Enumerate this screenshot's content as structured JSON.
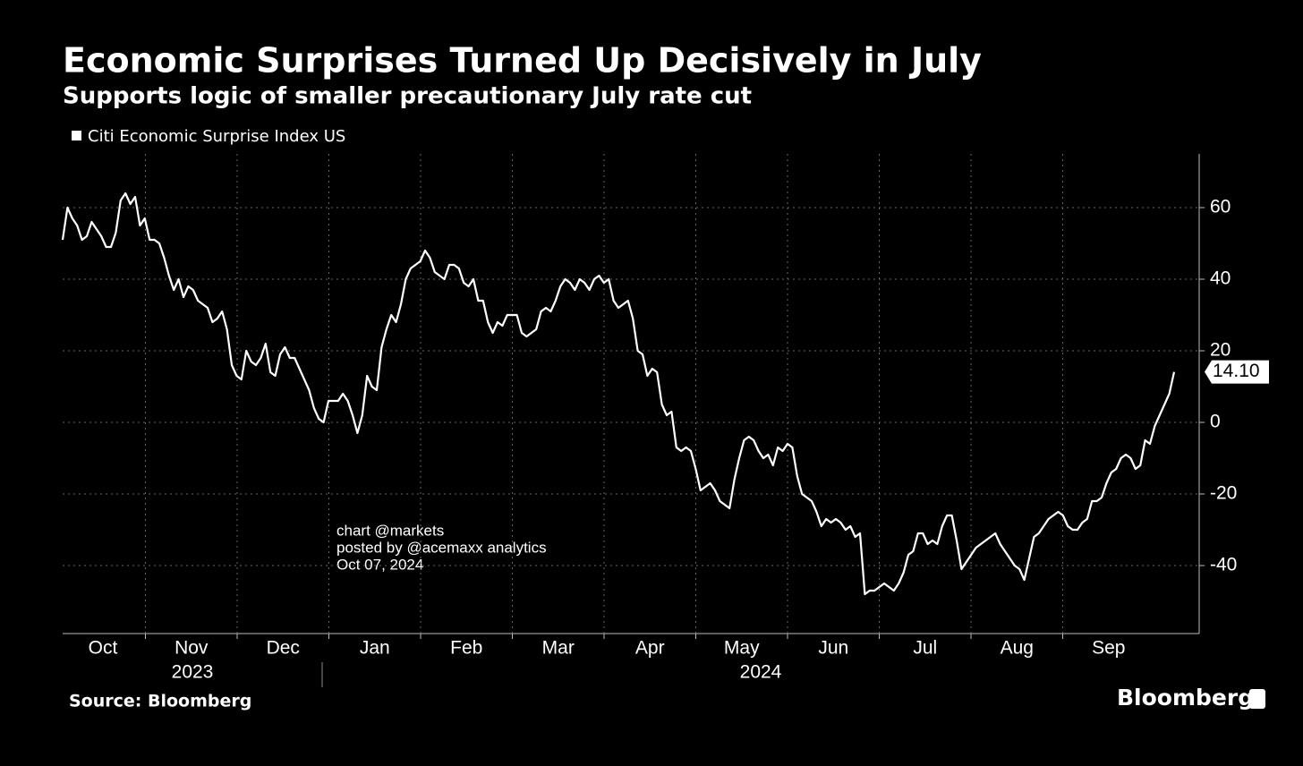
{
  "chart_data": {
    "type": "line",
    "title": "Economic Surprises Turned Up Decisively in July",
    "subtitle": "Supports logic of smaller precautionary July rate cut",
    "months": [
      "Oct",
      "Nov",
      "Dec",
      "Jan",
      "Feb",
      "Mar",
      "Apr",
      "May",
      "Jun",
      "Jul",
      "Aug",
      "Sep"
    ],
    "years": [
      "2023",
      "2024"
    ],
    "series": [
      {
        "name": "Citi Economic Surprise Index US",
        "color": "#ffffff",
        "values": [
          51,
          60,
          57,
          55,
          51,
          52,
          56,
          54,
          52,
          49,
          49,
          53,
          62,
          64,
          61,
          63,
          55,
          57,
          51,
          51,
          50,
          46,
          41,
          37,
          40,
          35,
          38,
          37,
          34,
          33,
          32,
          28,
          29,
          31,
          26,
          16,
          13,
          12,
          20,
          17,
          16,
          18,
          22,
          14,
          13,
          19,
          21,
          18,
          18,
          15,
          12,
          9,
          4,
          1,
          0,
          6,
          6,
          6,
          8,
          6,
          2,
          -3,
          2,
          13,
          10,
          9,
          21,
          26,
          30,
          28,
          33,
          40,
          43,
          44,
          45,
          48,
          46,
          42,
          41,
          40,
          44,
          44,
          43,
          39,
          38,
          40,
          34,
          34,
          28,
          25,
          28,
          27,
          30,
          30,
          30,
          25,
          24,
          25,
          26,
          31,
          32,
          31,
          34,
          38,
          40,
          39,
          37,
          40,
          39,
          37,
          40,
          41,
          39,
          40,
          34,
          32,
          33,
          34,
          29,
          20,
          19,
          13,
          15,
          14,
          5,
          2,
          3,
          -7,
          -8,
          -7,
          -8,
          -13,
          -19,
          -18,
          -17,
          -19,
          -22,
          -23,
          -24,
          -16,
          -10,
          -5,
          -4,
          -5,
          -8,
          -10,
          -9,
          -12,
          -7,
          -8,
          -6,
          -7,
          -15,
          -20,
          -21,
          -22,
          -25,
          -29,
          -27,
          -28,
          -27,
          -28,
          -30,
          -29,
          -32,
          -31,
          -48,
          -47,
          -47,
          -46,
          -45,
          -46,
          -47,
          -45,
          -42,
          -37,
          -36,
          -31,
          -31,
          -34,
          -33,
          -34,
          -29,
          -26,
          -26,
          -33,
          -41,
          -39,
          -37,
          -35,
          -34,
          -33,
          -32,
          -31,
          -34,
          -36,
          -38,
          -40,
          -41,
          -44,
          -38,
          -32,
          -31,
          -29,
          -27,
          -26,
          -25,
          -26,
          -29,
          -30,
          -30,
          -28,
          -27,
          -22,
          -22,
          -21,
          -17,
          -14,
          -13,
          -10,
          -9,
          -10,
          -13,
          -12,
          -5,
          -6,
          -1,
          2,
          5,
          8,
          14.1
        ]
      }
    ],
    "end_label": "14.10",
    "ylim": [
      -59,
      75
    ],
    "yticks": [
      -40,
      -20,
      0,
      20,
      40,
      60
    ],
    "grid": true,
    "source": "Source: Bloomberg",
    "watermark": [
      "chart @markets",
      "posted by @acemaxx analytics",
      "Oct 07, 2024"
    ],
    "logo": "Bloomberg"
  }
}
